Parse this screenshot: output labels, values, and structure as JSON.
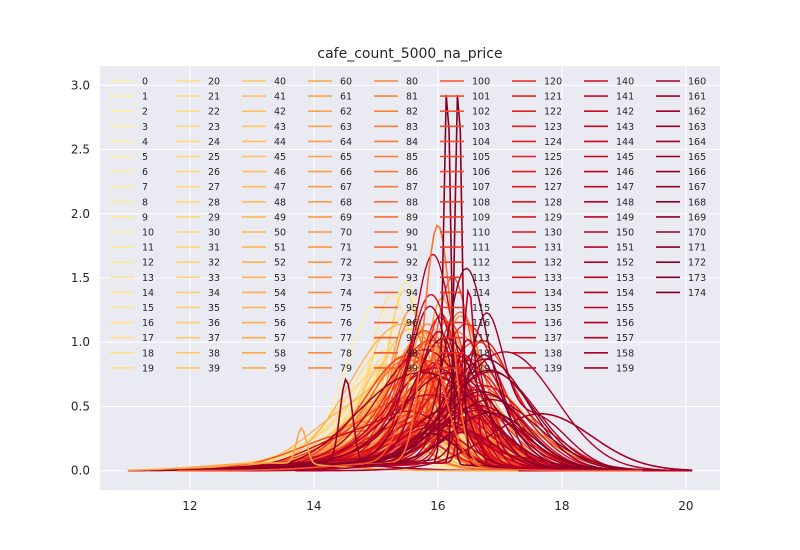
{
  "chart_data": {
    "type": "line",
    "title": "cafe_count_5000_na_price",
    "xlabel": "",
    "ylabel": "",
    "xlim": [
      10.55,
      20.55
    ],
    "ylim": [
      -0.15,
      3.15
    ],
    "x_ticks": [
      "12",
      "14",
      "16",
      "18",
      "20"
    ],
    "y_ticks": [
      "0.0",
      "0.5",
      "1.0",
      "1.5",
      "2.0",
      "2.5",
      "3.0"
    ],
    "grid": true,
    "legend_placement": "top",
    "legend_columns": 9,
    "colormap": [
      "#ffffcc",
      "#ffeda0",
      "#fed976",
      "#feb24c",
      "#fd8d3c",
      "#fc4e2a",
      "#e31a1c",
      "#bd0026",
      "#800026"
    ],
    "background": "#eaeaf2",
    "series_count": 175,
    "series": [
      {
        "name": "0"
      },
      {
        "name": "1"
      },
      {
        "name": "2"
      },
      {
        "name": "3"
      },
      {
        "name": "4"
      },
      {
        "name": "5"
      },
      {
        "name": "6"
      },
      {
        "name": "7"
      },
      {
        "name": "8"
      },
      {
        "name": "9"
      },
      {
        "name": "10"
      },
      {
        "name": "11"
      },
      {
        "name": "12"
      },
      {
        "name": "13"
      },
      {
        "name": "14"
      },
      {
        "name": "15"
      },
      {
        "name": "16"
      },
      {
        "name": "17"
      },
      {
        "name": "18"
      },
      {
        "name": "19"
      },
      {
        "name": "20"
      },
      {
        "name": "21"
      },
      {
        "name": "22"
      },
      {
        "name": "23"
      },
      {
        "name": "24"
      },
      {
        "name": "25"
      },
      {
        "name": "26"
      },
      {
        "name": "27"
      },
      {
        "name": "28"
      },
      {
        "name": "29"
      },
      {
        "name": "30"
      },
      {
        "name": "31"
      },
      {
        "name": "32"
      },
      {
        "name": "33"
      },
      {
        "name": "34"
      },
      {
        "name": "35"
      },
      {
        "name": "36"
      },
      {
        "name": "37"
      },
      {
        "name": "38"
      },
      {
        "name": "39"
      },
      {
        "name": "40"
      },
      {
        "name": "41"
      },
      {
        "name": "42"
      },
      {
        "name": "43"
      },
      {
        "name": "44"
      },
      {
        "name": "45"
      },
      {
        "name": "46"
      },
      {
        "name": "47"
      },
      {
        "name": "48"
      },
      {
        "name": "49"
      },
      {
        "name": "50"
      },
      {
        "name": "51"
      },
      {
        "name": "52"
      },
      {
        "name": "53"
      },
      {
        "name": "54"
      },
      {
        "name": "55"
      },
      {
        "name": "56"
      },
      {
        "name": "57"
      },
      {
        "name": "58"
      },
      {
        "name": "59"
      },
      {
        "name": "60"
      },
      {
        "name": "61"
      },
      {
        "name": "62"
      },
      {
        "name": "63"
      },
      {
        "name": "64"
      },
      {
        "name": "65"
      },
      {
        "name": "66"
      },
      {
        "name": "67"
      },
      {
        "name": "68"
      },
      {
        "name": "69"
      },
      {
        "name": "70"
      },
      {
        "name": "71"
      },
      {
        "name": "72"
      },
      {
        "name": "73"
      },
      {
        "name": "74"
      },
      {
        "name": "75"
      },
      {
        "name": "76"
      },
      {
        "name": "77"
      },
      {
        "name": "78"
      },
      {
        "name": "79"
      },
      {
        "name": "80"
      },
      {
        "name": "81"
      },
      {
        "name": "82"
      },
      {
        "name": "83"
      },
      {
        "name": "84"
      },
      {
        "name": "85"
      },
      {
        "name": "86"
      },
      {
        "name": "87"
      },
      {
        "name": "88"
      },
      {
        "name": "89"
      },
      {
        "name": "90"
      },
      {
        "name": "91"
      },
      {
        "name": "92"
      },
      {
        "name": "93"
      },
      {
        "name": "94"
      },
      {
        "name": "95"
      },
      {
        "name": "96"
      },
      {
        "name": "97"
      },
      {
        "name": "98"
      },
      {
        "name": "99"
      },
      {
        "name": "100"
      },
      {
        "name": "101"
      },
      {
        "name": "102"
      },
      {
        "name": "103"
      },
      {
        "name": "104"
      },
      {
        "name": "105"
      },
      {
        "name": "106"
      },
      {
        "name": "107"
      },
      {
        "name": "108"
      },
      {
        "name": "109"
      },
      {
        "name": "110"
      },
      {
        "name": "111"
      },
      {
        "name": "112"
      },
      {
        "name": "113"
      },
      {
        "name": "114"
      },
      {
        "name": "115"
      },
      {
        "name": "116"
      },
      {
        "name": "117"
      },
      {
        "name": "118"
      },
      {
        "name": "119"
      },
      {
        "name": "120"
      },
      {
        "name": "121"
      },
      {
        "name": "122"
      },
      {
        "name": "123"
      },
      {
        "name": "124"
      },
      {
        "name": "125"
      },
      {
        "name": "126"
      },
      {
        "name": "127"
      },
      {
        "name": "128"
      },
      {
        "name": "129"
      },
      {
        "name": "130"
      },
      {
        "name": "131"
      },
      {
        "name": "132"
      },
      {
        "name": "133"
      },
      {
        "name": "134"
      },
      {
        "name": "135"
      },
      {
        "name": "136"
      },
      {
        "name": "137"
      },
      {
        "name": "138"
      },
      {
        "name": "139"
      },
      {
        "name": "140"
      },
      {
        "name": "141"
      },
      {
        "name": "142"
      },
      {
        "name": "143"
      },
      {
        "name": "144"
      },
      {
        "name": "145"
      },
      {
        "name": "146"
      },
      {
        "name": "147"
      },
      {
        "name": "148"
      },
      {
        "name": "149"
      },
      {
        "name": "150"
      },
      {
        "name": "151"
      },
      {
        "name": "152"
      },
      {
        "name": "153"
      },
      {
        "name": "154"
      },
      {
        "name": "155"
      },
      {
        "name": "156"
      },
      {
        "name": "157"
      },
      {
        "name": "158"
      },
      {
        "name": "159"
      },
      {
        "name": "160"
      },
      {
        "name": "161"
      },
      {
        "name": "162"
      },
      {
        "name": "163"
      },
      {
        "name": "164"
      },
      {
        "name": "165"
      },
      {
        "name": "166"
      },
      {
        "name": "167"
      },
      {
        "name": "168"
      },
      {
        "name": "169"
      },
      {
        "name": "170"
      },
      {
        "name": "171"
      },
      {
        "name": "172"
      },
      {
        "name": "173"
      },
      {
        "name": "174"
      }
    ],
    "highlighted_curves": [
      {
        "series": "88",
        "peak_x": 16.0,
        "peak_y": 1.86,
        "spread": 0.22
      },
      {
        "series": "174",
        "peak_x": 16.15,
        "peak_y": 2.97,
        "spread": 0.06
      },
      {
        "series": "174",
        "peak_x": 16.33,
        "peak_y": 2.97,
        "spread": 0.06
      },
      {
        "series": "165",
        "peak_x": 14.52,
        "peak_y": 0.66,
        "spread": 0.1
      },
      {
        "series": "60",
        "peak_x": 13.8,
        "peak_y": 0.28,
        "spread": 0.08
      },
      {
        "series": "150",
        "peak_x": 16.5,
        "peak_y": 1.36,
        "spread": 0.1
      },
      {
        "series": "158",
        "peak_x": 17.7,
        "peak_y": 0.39,
        "spread": 0.8
      },
      {
        "series": "100",
        "peak_x": 15.8,
        "peak_y": 0.95,
        "spread": 0.3
      }
    ]
  }
}
